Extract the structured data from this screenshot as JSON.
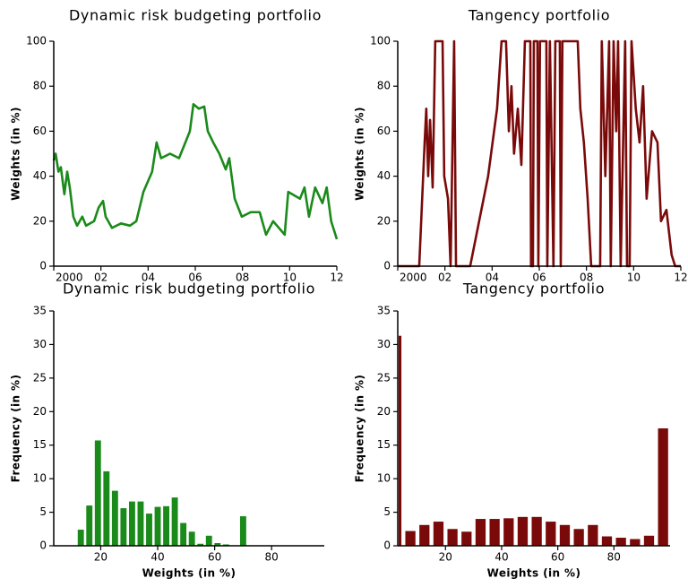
{
  "chart_data": [
    {
      "type": "line",
      "title": "Dynamic risk budgeting portfolio",
      "ylabel": "Weights (in %)",
      "color": "#1a8a1a",
      "x": [
        2000,
        2000.08,
        2000.2,
        2000.3,
        2000.45,
        2000.57,
        2000.68,
        2000.83,
        2000.99,
        2001.21,
        2001.37,
        2001.71,
        2001.9,
        2002.09,
        2002.2,
        2002.47,
        2002.85,
        2003.23,
        2003.5,
        2003.8,
        2004.17,
        2004.36,
        2004.55,
        2004.93,
        2005.31,
        2005.58,
        2005.77,
        2005.92,
        2006.15,
        2006.38,
        2006.53,
        2006.76,
        2007.02,
        2007.29,
        2007.44,
        2007.67,
        2007.97,
        2008.35,
        2008.73,
        2009,
        2009.3,
        2009.79,
        2009.94,
        2010.44,
        2010.63,
        2010.82,
        2011.08,
        2011.39,
        2011.57,
        2011.76,
        2012
      ],
      "values": [
        47,
        50,
        42,
        44,
        32,
        42,
        35,
        22,
        18,
        22,
        18,
        20,
        26,
        29,
        22,
        17,
        19,
        18,
        20,
        33,
        42,
        55,
        48,
        50,
        48,
        55,
        60,
        72,
        70,
        71,
        60,
        55,
        50,
        43,
        48,
        30,
        22,
        24,
        24,
        14,
        20,
        14,
        33,
        30,
        35,
        22,
        35,
        28,
        35,
        20,
        12
      ],
      "xlim": [
        2000,
        2012
      ],
      "xticks": [
        {
          "value": 2000,
          "label": "2000"
        },
        {
          "value": 2002,
          "label": "02"
        },
        {
          "value": 2004,
          "label": "04"
        },
        {
          "value": 2006,
          "label": "06"
        },
        {
          "value": 2008,
          "label": "08"
        },
        {
          "value": 2010,
          "label": "10"
        },
        {
          "value": 2012,
          "label": "12"
        }
      ],
      "ylim": [
        0,
        100
      ],
      "yticks": [
        0,
        20,
        40,
        60,
        80,
        100
      ]
    },
    {
      "type": "line",
      "title": "Tangency portfolio",
      "ylabel": "Weights (in %)",
      "color": "#7a0a0a",
      "x": [
        2000,
        2000.91,
        2001.14,
        2001.21,
        2001.29,
        2001.37,
        2001.48,
        2001.59,
        2001.9,
        2001.97,
        2002.13,
        2002.24,
        2002.39,
        2002.47,
        2003.07,
        2003.45,
        2003.83,
        2004.02,
        2004.21,
        2004.4,
        2004.59,
        2004.71,
        2004.82,
        2004.93,
        2005.09,
        2005.24,
        2005.39,
        2005.62,
        2005.65,
        2005.73,
        2005.77,
        2005.92,
        2005.96,
        2006.03,
        2006.3,
        2006.34,
        2006.45,
        2006.6,
        2006.68,
        2006.87,
        2006.91,
        2006.98,
        2007.63,
        2007.74,
        2007.89,
        2008.05,
        2008.2,
        2008.58,
        2008.65,
        2008.8,
        2008.96,
        2009.03,
        2009.15,
        2009.26,
        2009.34,
        2009.45,
        2009.64,
        2009.72,
        2009.83,
        2009.91,
        2010.09,
        2010.25,
        2010.4,
        2010.55,
        2010.78,
        2011.01,
        2011.16,
        2011.39,
        2011.61,
        2011.76,
        2012
      ],
      "values": [
        0,
        0,
        55,
        70,
        40,
        65,
        35,
        100,
        100,
        40,
        30,
        0,
        100,
        0,
        0,
        20,
        40,
        55,
        70,
        100,
        100,
        60,
        80,
        50,
        70,
        45,
        100,
        100,
        0,
        0,
        100,
        100,
        0,
        100,
        100,
        0,
        100,
        0,
        100,
        100,
        0,
        100,
        100,
        70,
        55,
        30,
        0,
        0,
        100,
        40,
        100,
        0,
        100,
        60,
        100,
        0,
        100,
        0,
        0,
        100,
        70,
        55,
        80,
        30,
        60,
        55,
        20,
        25,
        5,
        0,
        0
      ],
      "xlim": [
        2000,
        2012
      ],
      "xticks": [
        {
          "value": 2000,
          "label": "2000"
        },
        {
          "value": 2002,
          "label": "02"
        },
        {
          "value": 2004,
          "label": "04"
        },
        {
          "value": 2006,
          "label": "06"
        },
        {
          "value": 2008,
          "label": "08"
        },
        {
          "value": 2010,
          "label": "10"
        },
        {
          "value": 2012,
          "label": "12"
        }
      ],
      "ylim": [
        0,
        100
      ],
      "yticks": [
        0,
        20,
        40,
        60,
        80,
        100
      ]
    },
    {
      "type": "histogram",
      "title": "Dynamic risk budgeting portfolio",
      "xlabel": "Weights (in %)",
      "ylabel": "Frequency (in %)",
      "color": "#1a8a1a",
      "bins": [
        11.5,
        14.5,
        17.5,
        20.5,
        23.5,
        26.5,
        29.5,
        32.5,
        35.5,
        38.5,
        41.5,
        44.5,
        47.5,
        50.5,
        53.5,
        56.5,
        59.5,
        62.5,
        65.5,
        68.5,
        71.5
      ],
      "values": [
        2.4,
        6.0,
        15.7,
        11.1,
        8.2,
        5.6,
        6.6,
        6.6,
        4.8,
        5.8,
        5.9,
        7.2,
        3.4,
        2.1,
        0.3,
        1.5,
        0.4,
        0.2,
        0,
        4.4
      ],
      "xlim": [
        3.5,
        98.5
      ],
      "xticks": [
        20,
        40,
        60,
        80
      ],
      "ylim": [
        0,
        35
      ],
      "yticks": [
        0,
        5,
        10,
        15,
        20,
        25,
        30,
        35
      ]
    },
    {
      "type": "histogram",
      "title": "Tangency portfolio",
      "xlabel": "Weights (in %)",
      "ylabel": "Frequency (in %)",
      "color": "#7a0a0a",
      "bins": [
        0,
        5,
        10,
        15,
        20,
        25,
        30,
        35,
        40,
        45,
        50,
        55,
        60,
        65,
        70,
        75,
        80,
        85,
        90,
        95,
        100
      ],
      "values": [
        31.3,
        2.2,
        3.1,
        3.6,
        2.5,
        2.1,
        4.0,
        4.0,
        4.1,
        4.3,
        4.3,
        3.6,
        3.1,
        2.5,
        3.1,
        1.4,
        1.2,
        1.0,
        1.5,
        17.5
      ],
      "xlim": [
        3,
        100
      ],
      "xticks": [
        20,
        40,
        60,
        80
      ],
      "ylim": [
        0,
        35
      ],
      "yticks": [
        0,
        5,
        10,
        15,
        20,
        25,
        30,
        35
      ]
    }
  ]
}
